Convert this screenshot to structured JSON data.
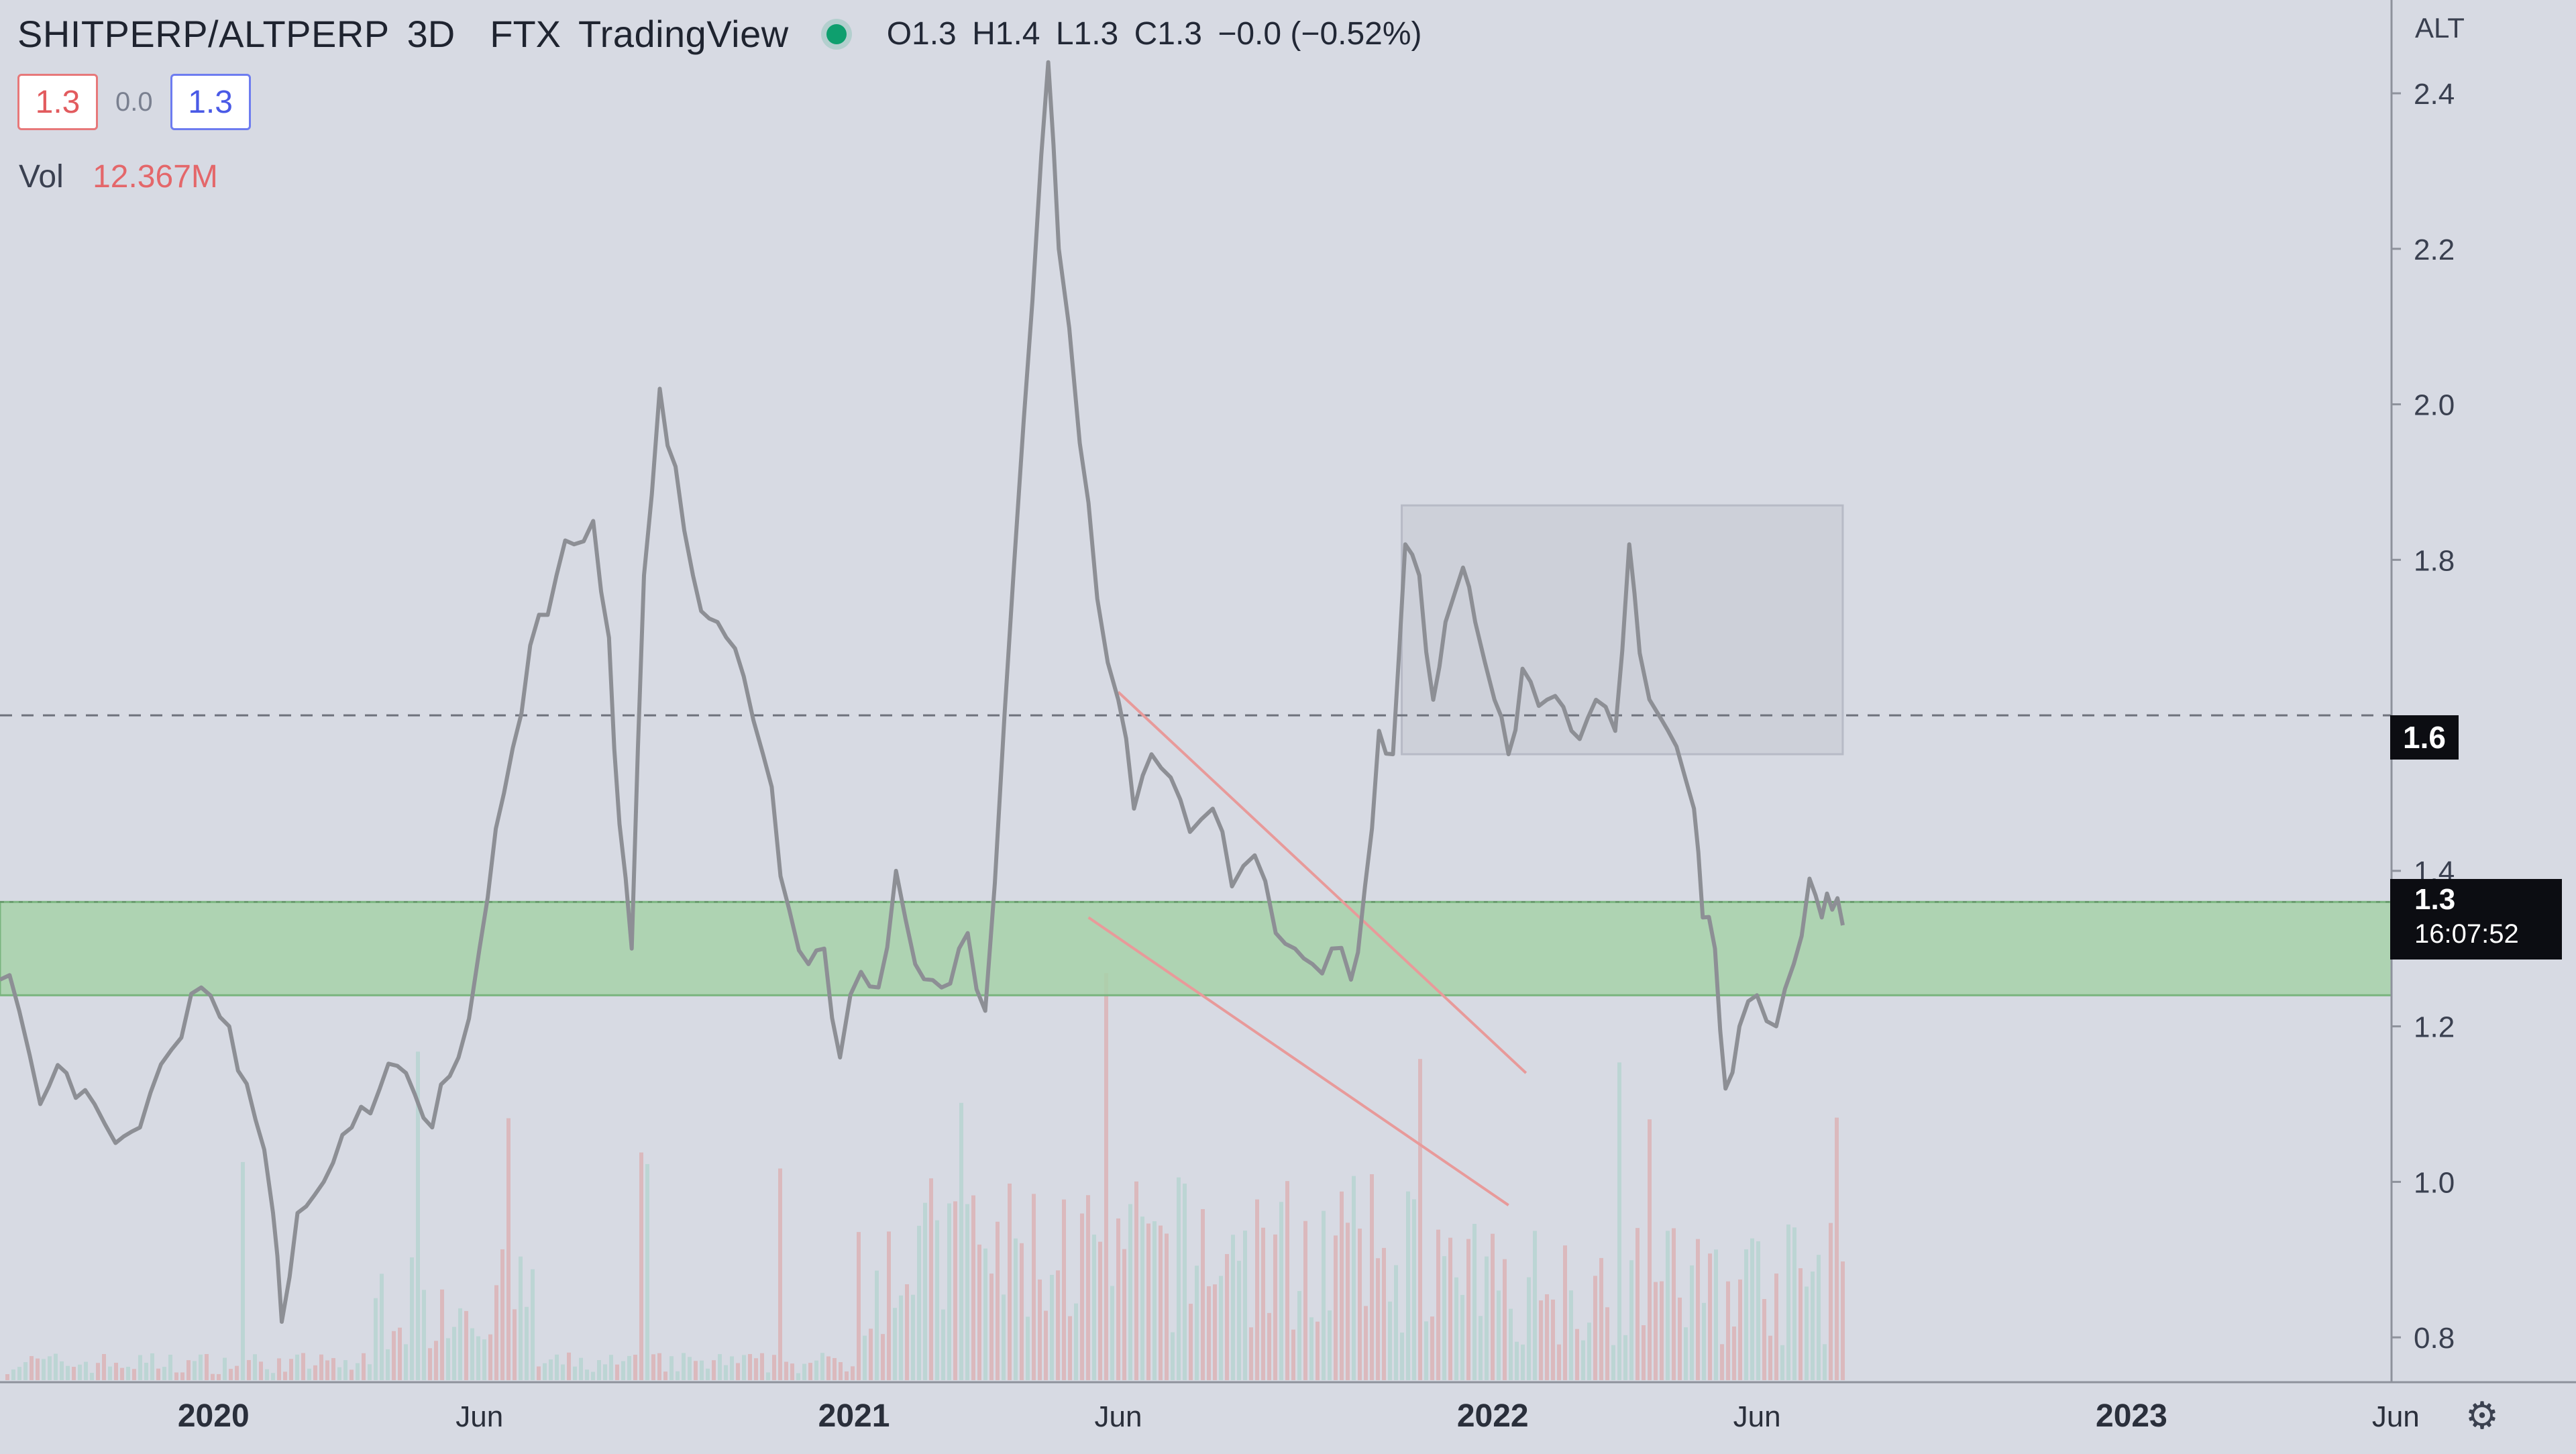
{
  "header": {
    "symbol": "SHITPERP/ALTPERP",
    "interval": "3D",
    "exchange": "FTX",
    "source": "TradingView",
    "ohlc": {
      "open": "O1.3",
      "high": "H1.4",
      "low": "L1.3",
      "close": "C1.3",
      "change": "−0.0 (−0.52%)"
    },
    "price_boxes": {
      "bid": "1.3",
      "spread": "0.0",
      "ask": "1.3"
    },
    "volume_label": "Vol",
    "volume_value": "12.367M"
  },
  "price_axis": {
    "unit": "ALT",
    "ticks": [
      "2.4",
      "2.2",
      "2.0",
      "1.8",
      "1.4",
      "1.2",
      "1.0",
      "0.8"
    ],
    "dashed_line_label": "1.6",
    "current_price": "1.3",
    "countdown": "16:07:52"
  },
  "colors": {
    "background": "#d7dae3",
    "price_line": "#8d8f95",
    "green_zone": "#a7d1a9",
    "red_line": "#e89a9a",
    "box_fill": "#c9ccd6",
    "tag_bg": "#0c0d12",
    "status_dot": "#0e9f6e"
  },
  "icons": {
    "status": "live-dot-icon",
    "settings": "gear-icon"
  },
  "chart_data": {
    "type": "line",
    "x_axis_type": "date",
    "x_ticks": [
      {
        "label": "2020",
        "date": "2020-01-01",
        "bold": true
      },
      {
        "label": "Jun",
        "date": "2020-06-01",
        "bold": false
      },
      {
        "label": "2021",
        "date": "2021-01-01",
        "bold": true
      },
      {
        "label": "Jun",
        "date": "2021-06-01",
        "bold": false
      },
      {
        "label": "2022",
        "date": "2022-01-01",
        "bold": true
      },
      {
        "label": "Jun",
        "date": "2022-06-01",
        "bold": false
      },
      {
        "label": "2023",
        "date": "2023-01-01",
        "bold": true
      },
      {
        "label": "Jun",
        "date": "2023-06-01",
        "bold": false
      }
    ],
    "ylim": [
      0.65,
      2.52
    ],
    "series": [
      {
        "points": [
          [
            "2019-09-01",
            1.26
          ],
          [
            "2019-09-12",
            1.22
          ],
          [
            "2019-09-24",
            1.1
          ],
          [
            "2019-10-09",
            1.14
          ],
          [
            "2019-10-25",
            1.1
          ],
          [
            "2019-11-06",
            1.05
          ],
          [
            "2019-11-20",
            1.07
          ],
          [
            "2019-12-08",
            1.17
          ],
          [
            "2019-12-25",
            1.25
          ],
          [
            "2020-01-10",
            1.2
          ],
          [
            "2020-01-25",
            1.08
          ],
          [
            "2020-02-04",
            0.96
          ],
          [
            "2020-02-09",
            0.82
          ],
          [
            "2020-02-18",
            0.96
          ],
          [
            "2020-03-04",
            1.0
          ],
          [
            "2020-03-20",
            1.07
          ],
          [
            "2020-04-05",
            1.12
          ],
          [
            "2020-04-20",
            1.14
          ],
          [
            "2020-05-05",
            1.07
          ],
          [
            "2020-05-20",
            1.16
          ],
          [
            "2020-06-01",
            1.3
          ],
          [
            "2020-06-15",
            1.5
          ],
          [
            "2020-06-30",
            1.69
          ],
          [
            "2020-07-15",
            1.78
          ],
          [
            "2020-07-25",
            1.82
          ],
          [
            "2020-08-05",
            1.85
          ],
          [
            "2020-08-14",
            1.7
          ],
          [
            "2020-08-20",
            1.46
          ],
          [
            "2020-08-27",
            1.3
          ],
          [
            "2020-09-03",
            1.78
          ],
          [
            "2020-09-12",
            2.02
          ],
          [
            "2020-09-21",
            1.92
          ],
          [
            "2020-10-01",
            1.78
          ],
          [
            "2020-10-15",
            1.72
          ],
          [
            "2020-10-30",
            1.65
          ],
          [
            "2020-11-10",
            1.55
          ],
          [
            "2020-11-25",
            1.35
          ],
          [
            "2020-12-06",
            1.28
          ],
          [
            "2020-12-15",
            1.3
          ],
          [
            "2020-12-24",
            1.16
          ],
          [
            "2021-01-05",
            1.27
          ],
          [
            "2021-01-15",
            1.25
          ],
          [
            "2021-01-25",
            1.4
          ],
          [
            "2021-02-05",
            1.28
          ],
          [
            "2021-02-20",
            1.25
          ],
          [
            "2021-03-07",
            1.32
          ],
          [
            "2021-03-17",
            1.22
          ],
          [
            "2021-03-28",
            1.6
          ],
          [
            "2021-04-08",
            1.98
          ],
          [
            "2021-04-18",
            2.32
          ],
          [
            "2021-04-22",
            2.44
          ],
          [
            "2021-04-28",
            2.2
          ],
          [
            "2021-05-10",
            1.95
          ],
          [
            "2021-05-20",
            1.75
          ],
          [
            "2021-06-01",
            1.62
          ],
          [
            "2021-06-10",
            1.48
          ],
          [
            "2021-06-20",
            1.55
          ],
          [
            "2021-07-01",
            1.52
          ],
          [
            "2021-07-12",
            1.45
          ],
          [
            "2021-07-25",
            1.48
          ],
          [
            "2021-08-05",
            1.38
          ],
          [
            "2021-08-18",
            1.42
          ],
          [
            "2021-08-30",
            1.32
          ],
          [
            "2021-09-10",
            1.3
          ],
          [
            "2021-09-20",
            1.28
          ],
          [
            "2021-10-01",
            1.3
          ],
          [
            "2021-10-12",
            1.26
          ],
          [
            "2021-10-20",
            1.38
          ],
          [
            "2021-10-28",
            1.58
          ],
          [
            "2021-11-05",
            1.55
          ],
          [
            "2021-11-12",
            1.82
          ],
          [
            "2021-11-20",
            1.78
          ],
          [
            "2021-11-28",
            1.62
          ],
          [
            "2021-12-05",
            1.72
          ],
          [
            "2021-12-15",
            1.79
          ],
          [
            "2021-12-22",
            1.72
          ],
          [
            "2022-01-02",
            1.62
          ],
          [
            "2022-01-10",
            1.55
          ],
          [
            "2022-01-18",
            1.66
          ],
          [
            "2022-02-01",
            1.62
          ],
          [
            "2022-02-15",
            1.58
          ],
          [
            "2022-03-01",
            1.62
          ],
          [
            "2022-03-12",
            1.58
          ],
          [
            "2022-03-20",
            1.82
          ],
          [
            "2022-03-26",
            1.68
          ],
          [
            "2022-04-06",
            1.6
          ],
          [
            "2022-04-16",
            1.56
          ],
          [
            "2022-04-26",
            1.48
          ],
          [
            "2022-05-01",
            1.34
          ],
          [
            "2022-05-08",
            1.3
          ],
          [
            "2022-05-14",
            1.12
          ],
          [
            "2022-05-22",
            1.2
          ],
          [
            "2022-06-01",
            1.24
          ],
          [
            "2022-06-12",
            1.2
          ],
          [
            "2022-06-22",
            1.28
          ],
          [
            "2022-07-01",
            1.39
          ],
          [
            "2022-07-08",
            1.34
          ],
          [
            "2022-07-14",
            1.35
          ],
          [
            "2022-07-20",
            1.33
          ]
        ]
      }
    ],
    "annotations": {
      "dashed_level": 1.6,
      "green_zone": [
        1.24,
        1.36
      ],
      "box": {
        "x0": "2021-11-10",
        "x1": "2022-07-20",
        "y0": 1.55,
        "y1": 1.87
      },
      "descending_channel": {
        "upper": [
          [
            "2021-06-01",
            1.63
          ],
          [
            "2022-01-20",
            1.14
          ]
        ],
        "lower": [
          [
            "2021-05-15",
            1.34
          ],
          [
            "2022-01-10",
            0.97
          ]
        ]
      }
    }
  }
}
